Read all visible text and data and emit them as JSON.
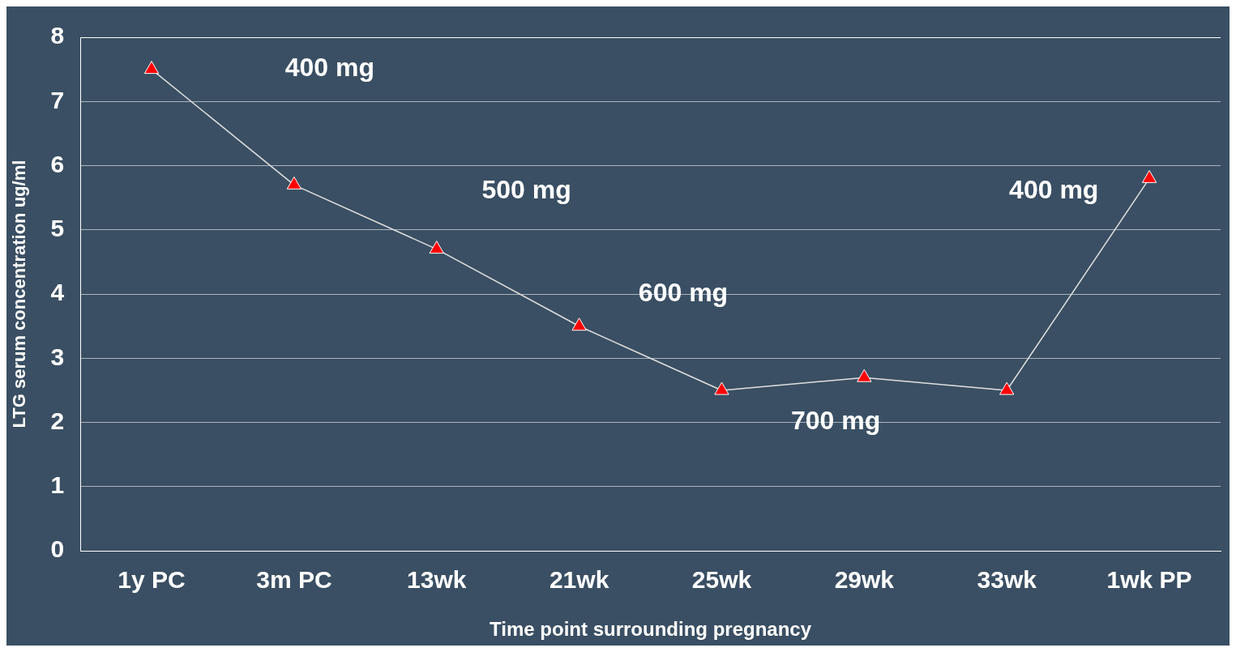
{
  "chart_data": {
    "type": "line",
    "xlabel": "Time point surrounding pregnancy",
    "ylabel": "LTG serum concentration ug/ml",
    "categories": [
      "1y PC",
      "3m PC",
      "13wk",
      "21wk",
      "25wk",
      "29wk",
      "33wk",
      "1wk PP"
    ],
    "series": [
      {
        "color": "#ff0000",
        "values": [
          7.5,
          5.7,
          4.7,
          3.5,
          2.5,
          2.7,
          2.5,
          5.8
        ]
      }
    ],
    "ylim": [
      0,
      8
    ],
    "yticks": [
      0,
      1,
      2,
      3,
      4,
      5,
      6,
      7,
      8
    ],
    "grid": "y",
    "legend": false,
    "marker": "triangle",
    "line_style": "solid",
    "annotations": [
      "400 mg",
      "500 mg",
      "600 mg",
      "700 mg",
      "400 mg"
    ]
  }
}
